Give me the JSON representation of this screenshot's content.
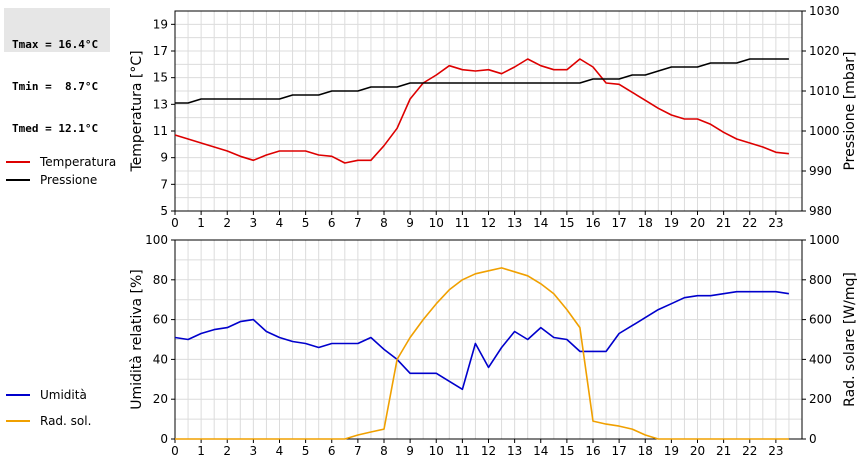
{
  "stats": {
    "tmax": "Tmax = 16.4°C",
    "tmin": "Tmin =  8.7°C",
    "tmed": "Tmed = 12.1°C"
  },
  "chart_data": [
    {
      "type": "line",
      "title": "",
      "xlabel": "",
      "xlim": [
        0,
        24
      ],
      "x_ticks": [
        0,
        1,
        2,
        3,
        4,
        5,
        6,
        7,
        8,
        9,
        10,
        11,
        12,
        13,
        14,
        15,
        16,
        17,
        18,
        19,
        20,
        21,
        22,
        23
      ],
      "ylabel": "Temperatura [°C]",
      "ylim": [
        5,
        20
      ],
      "y_ticks": [
        5,
        7,
        9,
        11,
        13,
        15,
        17,
        19
      ],
      "y2label": "Pressione [mbar]",
      "y2lim": [
        980,
        1030
      ],
      "y2_ticks": [
        980,
        990,
        1000,
        1010,
        1020,
        1030
      ],
      "grid": true,
      "legend": "left",
      "series": [
        {
          "name": "Temperatura",
          "axis": "left",
          "color": "#dd0000",
          "x": [
            0,
            0.5,
            1,
            1.5,
            2,
            2.5,
            3,
            3.5,
            4,
            4.5,
            5,
            5.5,
            6,
            6.5,
            7,
            7.5,
            8,
            8.5,
            9,
            9.5,
            10,
            10.5,
            11,
            11.5,
            12,
            12.5,
            13,
            13.5,
            14,
            14.5,
            15,
            15.5,
            16,
            16.5,
            17,
            17.5,
            18,
            18.5,
            19,
            19.5,
            20,
            20.5,
            21,
            21.5,
            22,
            22.5,
            23,
            23.5
          ],
          "values": [
            10.7,
            10.4,
            10.1,
            9.8,
            9.5,
            9.1,
            8.8,
            9.2,
            9.5,
            9.5,
            9.5,
            9.2,
            9.1,
            8.6,
            8.8,
            8.8,
            9.9,
            11.2,
            13.4,
            14.6,
            15.2,
            15.9,
            15.6,
            15.5,
            15.6,
            15.3,
            15.8,
            16.4,
            15.9,
            15.6,
            15.6,
            16.4,
            15.8,
            14.6,
            14.5,
            13.9,
            13.3,
            12.7,
            12.2,
            11.9,
            11.9,
            11.5,
            10.9,
            10.4,
            10.1,
            9.8,
            9.4,
            9.3
          ]
        },
        {
          "name": "Pressione",
          "axis": "right",
          "color": "#000000",
          "x": [
            0,
            0.5,
            1,
            1.5,
            2,
            2.5,
            3,
            3.5,
            4,
            4.5,
            5,
            5.5,
            6,
            6.5,
            7,
            7.5,
            8,
            8.5,
            9,
            9.5,
            10,
            10.5,
            11,
            11.5,
            12,
            12.5,
            13,
            13.5,
            14,
            14.5,
            15,
            15.5,
            16,
            16.5,
            17,
            17.5,
            18,
            18.5,
            19,
            19.5,
            20,
            20.5,
            21,
            21.5,
            22,
            22.5,
            23,
            23.5
          ],
          "values": [
            1007,
            1007,
            1008,
            1008,
            1008,
            1008,
            1008,
            1008,
            1008,
            1009,
            1009,
            1009,
            1010,
            1010,
            1010,
            1011,
            1011,
            1011,
            1012,
            1012,
            1012,
            1012,
            1012,
            1012,
            1012,
            1012,
            1012,
            1012,
            1012,
            1012,
            1012,
            1012,
            1013,
            1013,
            1013,
            1014,
            1014,
            1015,
            1016,
            1016,
            1016,
            1017,
            1017,
            1017,
            1018,
            1018,
            1018,
            1018
          ]
        }
      ]
    },
    {
      "type": "line",
      "title": "",
      "xlabel": "",
      "xlim": [
        0,
        24
      ],
      "x_ticks": [
        0,
        1,
        2,
        3,
        4,
        5,
        6,
        7,
        8,
        9,
        10,
        11,
        12,
        13,
        14,
        15,
        16,
        17,
        18,
        19,
        20,
        21,
        22,
        23
      ],
      "ylabel": "Umidità relativa [%]",
      "ylim": [
        0,
        100
      ],
      "y_ticks": [
        0,
        20,
        40,
        60,
        80,
        100
      ],
      "y2label": "Rad. solare [W/mq]",
      "y2lim": [
        0,
        1000
      ],
      "y2_ticks": [
        0,
        200,
        400,
        600,
        800,
        1000
      ],
      "grid": true,
      "legend": "left",
      "series": [
        {
          "name": "Umidità",
          "axis": "left",
          "color": "#0000cc",
          "x": [
            0,
            0.5,
            1,
            1.5,
            2,
            2.5,
            3,
            3.5,
            4,
            4.5,
            5,
            5.5,
            6,
            6.5,
            7,
            7.5,
            8,
            8.5,
            9,
            9.5,
            10,
            10.5,
            11,
            11.5,
            12,
            12.5,
            13,
            13.5,
            14,
            14.5,
            15,
            15.5,
            16,
            16.5,
            17,
            17.5,
            18,
            18.5,
            19,
            19.5,
            20,
            20.5,
            21,
            21.5,
            22,
            22.5,
            23,
            23.5
          ],
          "values": [
            51,
            50,
            53,
            55,
            56,
            59,
            60,
            54,
            51,
            49,
            48,
            46,
            48,
            48,
            48,
            51,
            45,
            40,
            33,
            33,
            33,
            29,
            25,
            48,
            36,
            46,
            54,
            50,
            56,
            51,
            50,
            44,
            44,
            44,
            53,
            57,
            61,
            65,
            68,
            71,
            72,
            72,
            73,
            74,
            74,
            74,
            74,
            73
          ]
        },
        {
          "name": "Rad. sol.",
          "axis": "right",
          "color": "#f0a000",
          "x": [
            0,
            1,
            2,
            3,
            4,
            5,
            6,
            6.5,
            7,
            7.5,
            8,
            8.5,
            9,
            9.5,
            10,
            10.5,
            11,
            11.5,
            12,
            12.5,
            13,
            13.5,
            14,
            14.5,
            15,
            15.5,
            16,
            16.5,
            17,
            17.5,
            18,
            18.5,
            19,
            20,
            21,
            22,
            23,
            23.5
          ],
          "values": [
            0,
            0,
            0,
            0,
            0,
            0,
            0,
            0,
            20,
            35,
            50,
            400,
            510,
            600,
            680,
            750,
            800,
            830,
            845,
            860,
            840,
            820,
            780,
            730,
            650,
            560,
            90,
            75,
            65,
            50,
            20,
            0,
            0,
            0,
            0,
            0,
            0,
            0
          ]
        }
      ]
    }
  ]
}
